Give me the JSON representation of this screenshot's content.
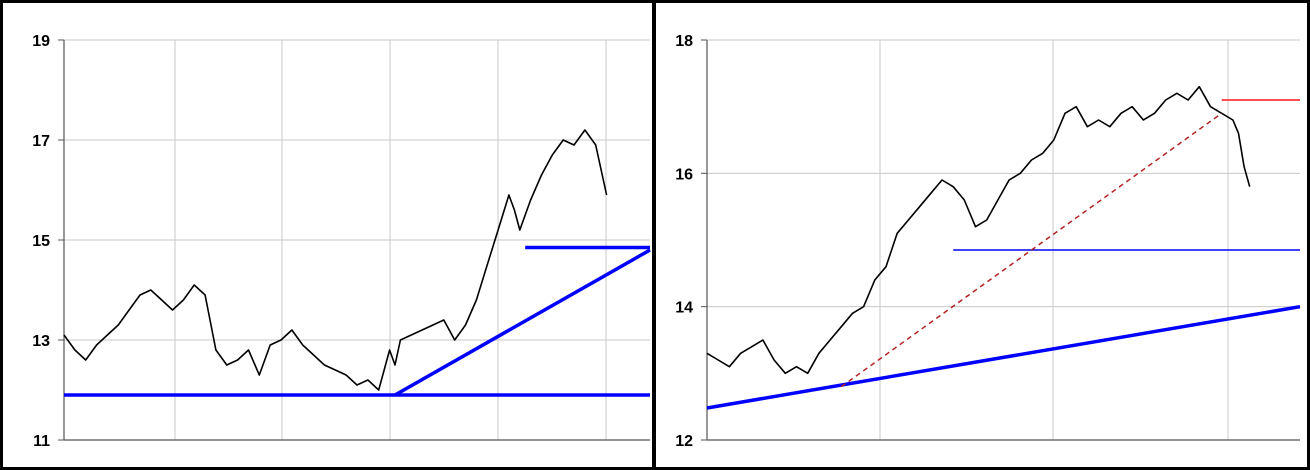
{
  "chart_data": [
    {
      "type": "line",
      "title": "",
      "xlabel": "",
      "ylabel": "",
      "ylim": [
        11,
        19
      ],
      "yticks": [
        "19",
        "17",
        "15",
        "13",
        "11"
      ],
      "ytick_values": [
        19,
        17,
        15,
        13,
        11
      ],
      "xlim": [
        0,
        5.4
      ],
      "grid": true,
      "series": [
        {
          "style": "price",
          "color": "#000000",
          "x": [
            0,
            0.1,
            0.2,
            0.3,
            0.4,
            0.5,
            0.6,
            0.7,
            0.8,
            0.9,
            1.0,
            1.1,
            1.2,
            1.3,
            1.4,
            1.5,
            1.6,
            1.7,
            1.8,
            1.9,
            2.0,
            2.1,
            2.2,
            2.3,
            2.4,
            2.5,
            2.6,
            2.7,
            2.8,
            2.9,
            3.0,
            3.05,
            3.1,
            3.2,
            3.3,
            3.4,
            3.5,
            3.6,
            3.7,
            3.8,
            3.9,
            4.0,
            4.1,
            4.15,
            4.2,
            4.3,
            4.4,
            4.5,
            4.6,
            4.7,
            4.8,
            4.9,
            5.0
          ],
          "values": [
            13.1,
            12.8,
            12.6,
            12.9,
            13.1,
            13.3,
            13.6,
            13.9,
            14.0,
            13.8,
            13.6,
            13.8,
            14.1,
            13.9,
            12.8,
            12.5,
            12.6,
            12.8,
            12.3,
            12.9,
            13.0,
            13.2,
            12.9,
            12.7,
            12.5,
            12.4,
            12.3,
            12.1,
            12.2,
            12.0,
            12.8,
            12.5,
            13.0,
            13.1,
            13.2,
            13.3,
            13.4,
            13.0,
            13.3,
            13.8,
            14.5,
            15.2,
            15.9,
            15.6,
            15.2,
            15.8,
            16.3,
            16.7,
            17.0,
            16.9,
            17.2,
            16.9,
            15.9
          ]
        },
        {
          "style": "support",
          "color": "#0000ff",
          "x": [
            0,
            5.4
          ],
          "values": [
            11.9,
            11.9
          ]
        },
        {
          "style": "trend",
          "color": "#0000ff",
          "x": [
            3.05,
            5.4
          ],
          "values": [
            11.9,
            14.8
          ]
        },
        {
          "style": "support",
          "color": "#0000ff",
          "x": [
            4.25,
            5.4
          ],
          "values": [
            14.85,
            14.85
          ]
        }
      ]
    },
    {
      "type": "line",
      "title": "",
      "xlabel": "",
      "ylabel": "",
      "ylim": [
        12,
        18
      ],
      "yticks": [
        "18",
        "16",
        "14",
        "12"
      ],
      "ytick_values": [
        18,
        16,
        14,
        12
      ],
      "xlim": [
        0,
        5.3
      ],
      "grid": true,
      "series": [
        {
          "style": "price",
          "color": "#000000",
          "x": [
            0,
            0.1,
            0.2,
            0.3,
            0.4,
            0.5,
            0.6,
            0.7,
            0.8,
            0.9,
            1.0,
            1.1,
            1.2,
            1.3,
            1.4,
            1.5,
            1.6,
            1.7,
            1.8,
            1.9,
            2.0,
            2.1,
            2.2,
            2.3,
            2.4,
            2.5,
            2.6,
            2.7,
            2.8,
            2.9,
            3.0,
            3.1,
            3.2,
            3.3,
            3.4,
            3.5,
            3.6,
            3.7,
            3.8,
            3.9,
            4.0,
            4.1,
            4.2,
            4.3,
            4.4,
            4.5,
            4.6,
            4.7,
            4.75,
            4.8,
            4.85
          ],
          "values": [
            13.3,
            13.2,
            13.1,
            13.3,
            13.4,
            13.5,
            13.2,
            13.0,
            13.1,
            13.0,
            13.3,
            13.5,
            13.7,
            13.9,
            14.0,
            14.4,
            14.6,
            15.1,
            15.3,
            15.5,
            15.7,
            15.9,
            15.8,
            15.6,
            15.2,
            15.3,
            15.6,
            15.9,
            16.0,
            16.2,
            16.3,
            16.5,
            16.9,
            17.0,
            16.7,
            16.8,
            16.7,
            16.9,
            17.0,
            16.8,
            16.9,
            17.1,
            17.2,
            17.1,
            17.3,
            17.0,
            16.9,
            16.8,
            16.6,
            16.1,
            15.8
          ]
        },
        {
          "style": "support",
          "color": "#0000ff",
          "x": [
            2.2,
            5.3
          ],
          "values": [
            14.85,
            14.85
          ]
        },
        {
          "style": "trend",
          "color": "#0000ff",
          "x": [
            0,
            5.3
          ],
          "values": [
            12.48,
            14.0
          ]
        },
        {
          "style": "dashed",
          "color": "#b22222",
          "x": [
            1.2,
            4.6
          ],
          "values": [
            12.8,
            16.9
          ]
        },
        {
          "style": "resistance",
          "color": "#ff5050",
          "x": [
            4.6,
            5.3
          ],
          "values": [
            17.1,
            17.1
          ]
        }
      ]
    }
  ]
}
